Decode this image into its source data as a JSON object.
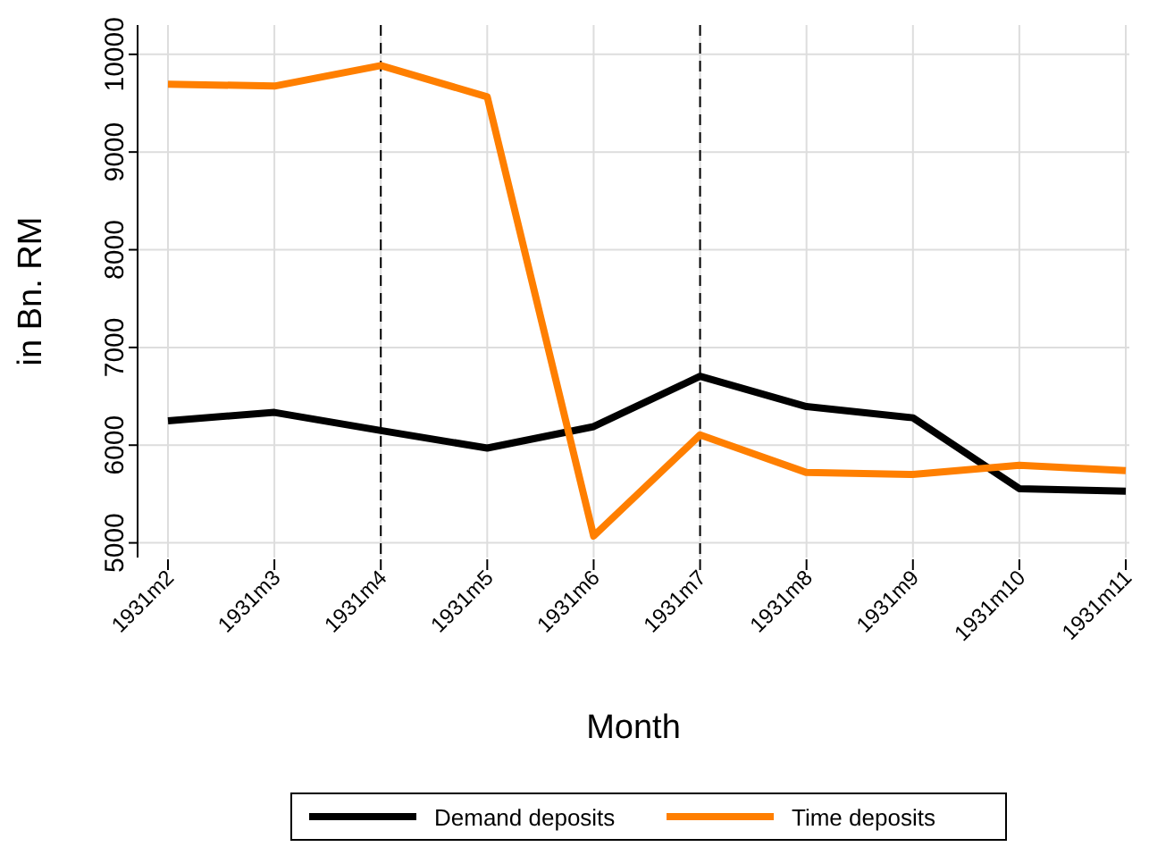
{
  "chart_data": {
    "type": "line",
    "xlabel": "Month",
    "ylabel": "in Bn. RM",
    "categories": [
      "1931m2",
      "1931m3",
      "1931m4",
      "1931m5",
      "1931m6",
      "1931m7",
      "1931m8",
      "1931m9",
      "1931m10",
      "1931m11"
    ],
    "series": [
      {
        "name": "Demand deposits",
        "color": "#000000",
        "values": [
          6250,
          6335,
          6150,
          5970,
          6190,
          6705,
          6395,
          6280,
          5555,
          5530
        ]
      },
      {
        "name": "Time deposits",
        "color": "#ff7f00",
        "values": [
          9695,
          9675,
          9885,
          9565,
          5070,
          6105,
          5720,
          5700,
          5795,
          5740
        ]
      }
    ],
    "ylim": [
      4850,
      10300
    ],
    "yticks": [
      5000,
      6000,
      7000,
      8000,
      9000,
      10000
    ],
    "grid": true,
    "legend": "bottom",
    "marker": "none",
    "line_style": "solid",
    "ref_lines": [
      {
        "axis": "x",
        "value": "1931m4",
        "line_style": "dashed",
        "color": "#000000"
      },
      {
        "axis": "x",
        "value": "1931m7",
        "line_style": "dashed",
        "color": "#000000"
      }
    ]
  }
}
